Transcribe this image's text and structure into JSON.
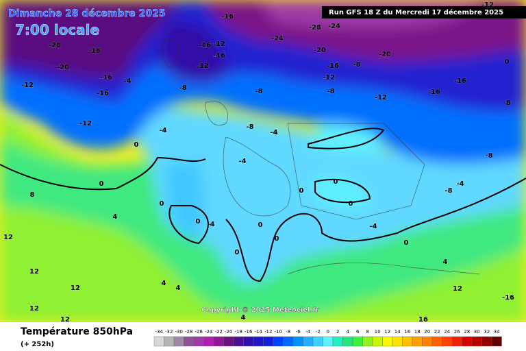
{
  "header": {
    "title": "Dimanche 28 décembre 2025",
    "time": "7:00 locale",
    "run": "Run GFS 18 Z du Mercredi 17 décembre 2025"
  },
  "copyright": "Copyright © 2025 Meteociel.fr",
  "footer": {
    "parameter": "Température 850hPa",
    "lead": "(+ 252h)"
  },
  "isotherm_labels": [
    -20,
    -16,
    -20,
    -16,
    -12,
    -16,
    -12,
    -16,
    -24,
    -20,
    -20,
    -16,
    -12,
    -16,
    -12,
    -8,
    -4,
    -8,
    -16,
    -12,
    -8,
    -8,
    -12,
    -16,
    -16,
    -8,
    -4,
    -4,
    0,
    -4,
    0,
    0,
    0,
    -4,
    0,
    0,
    0,
    0,
    0,
    0,
    -4,
    0,
    4,
    -8,
    -8,
    -4,
    8,
    4,
    12,
    12,
    12,
    12,
    12,
    4,
    4,
    4,
    16,
    -16,
    12,
    -12,
    -28,
    -24,
    -8,
    0
  ],
  "scale": [
    {
      "value": -34,
      "color": "#d8d8d8"
    },
    {
      "value": -32,
      "color": "#b4b4b4"
    },
    {
      "value": -30,
      "color": "#a088a8"
    },
    {
      "value": -28,
      "color": "#905098"
    },
    {
      "value": -26,
      "color": "#a03aa8"
    },
    {
      "value": -24,
      "color": "#b020b0"
    },
    {
      "value": -22,
      "color": "#901898"
    },
    {
      "value": -20,
      "color": "#6a1080"
    },
    {
      "value": -18,
      "color": "#4a1090"
    },
    {
      "value": -16,
      "color": "#3010a8"
    },
    {
      "value": -14,
      "color": "#2018c8"
    },
    {
      "value": -12,
      "color": "#1020e0"
    },
    {
      "value": -10,
      "color": "#0040ff"
    },
    {
      "value": -8,
      "color": "#0068ff"
    },
    {
      "value": -6,
      "color": "#0090ff"
    },
    {
      "value": -4,
      "color": "#20b0ff"
    },
    {
      "value": -2,
      "color": "#40d0ff"
    },
    {
      "value": 0,
      "color": "#60f0ff"
    },
    {
      "value": 2,
      "color": "#20f0c0"
    },
    {
      "value": 4,
      "color": "#20e880"
    },
    {
      "value": 6,
      "color": "#40f040"
    },
    {
      "value": 8,
      "color": "#90f020"
    },
    {
      "value": 10,
      "color": "#c8f800"
    },
    {
      "value": 12,
      "color": "#f8f800"
    },
    {
      "value": 14,
      "color": "#ffe000"
    },
    {
      "value": 16,
      "color": "#ffc000"
    },
    {
      "value": 18,
      "color": "#ffa000"
    },
    {
      "value": 20,
      "color": "#ff8000"
    },
    {
      "value": 22,
      "color": "#ff6000"
    },
    {
      "value": 24,
      "color": "#ff4000"
    },
    {
      "value": 26,
      "color": "#f02000"
    },
    {
      "value": 28,
      "color": "#d80000"
    },
    {
      "value": 30,
      "color": "#b80000"
    },
    {
      "value": 32,
      "color": "#900000"
    },
    {
      "value": 34,
      "color": "#600000"
    }
  ]
}
